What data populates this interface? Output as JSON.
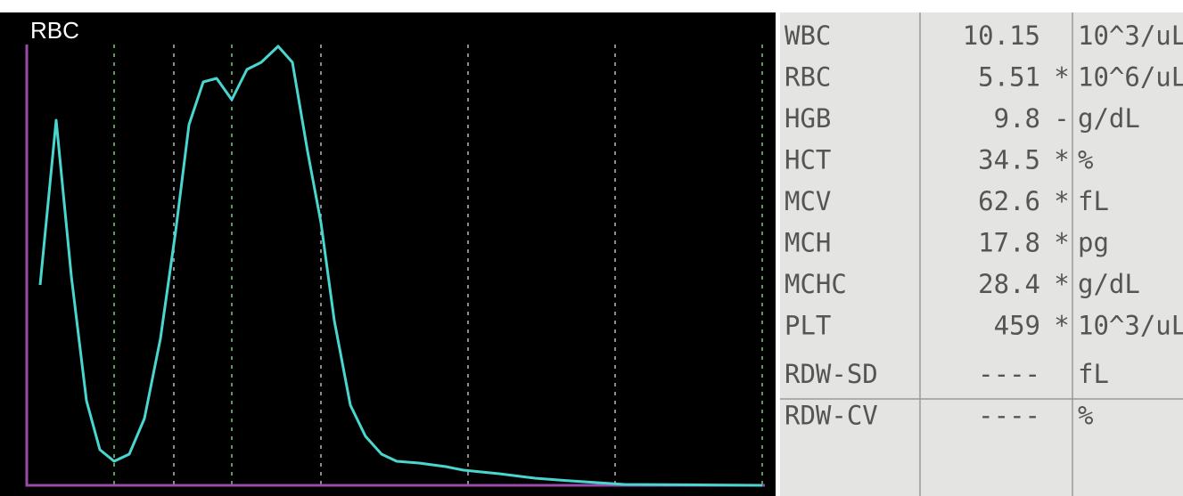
{
  "histogram": {
    "label": "RBC"
  },
  "table": {
    "rows": [
      {
        "name": "WBC",
        "value": "10.15",
        "unit": "10^3/uL"
      },
      {
        "name": "RBC",
        "value": "5.51",
        "flag": "*",
        "unit": "10^6/uL"
      },
      {
        "name": "HGB",
        "value": "9.8",
        "flag": "-",
        "unit": "g/dL"
      },
      {
        "name": "HCT",
        "value": "34.5",
        "flag": "*",
        "unit": "%"
      },
      {
        "name": "MCV",
        "value": "62.6",
        "flag": "*",
        "unit": "fL"
      },
      {
        "name": "MCH",
        "value": "17.8",
        "flag": "*",
        "unit": "pg"
      },
      {
        "name": "MCHC",
        "value": "28.4",
        "flag": "*",
        "unit": "g/dL"
      },
      {
        "name": "PLT",
        "value": "459",
        "flag": "*",
        "unit": "10^3/uL"
      },
      {
        "name": "RDW-SD",
        "value": "----",
        "unit": "fL"
      },
      {
        "name": "RDW-CV",
        "value": "----",
        "unit": "%"
      }
    ]
  }
}
